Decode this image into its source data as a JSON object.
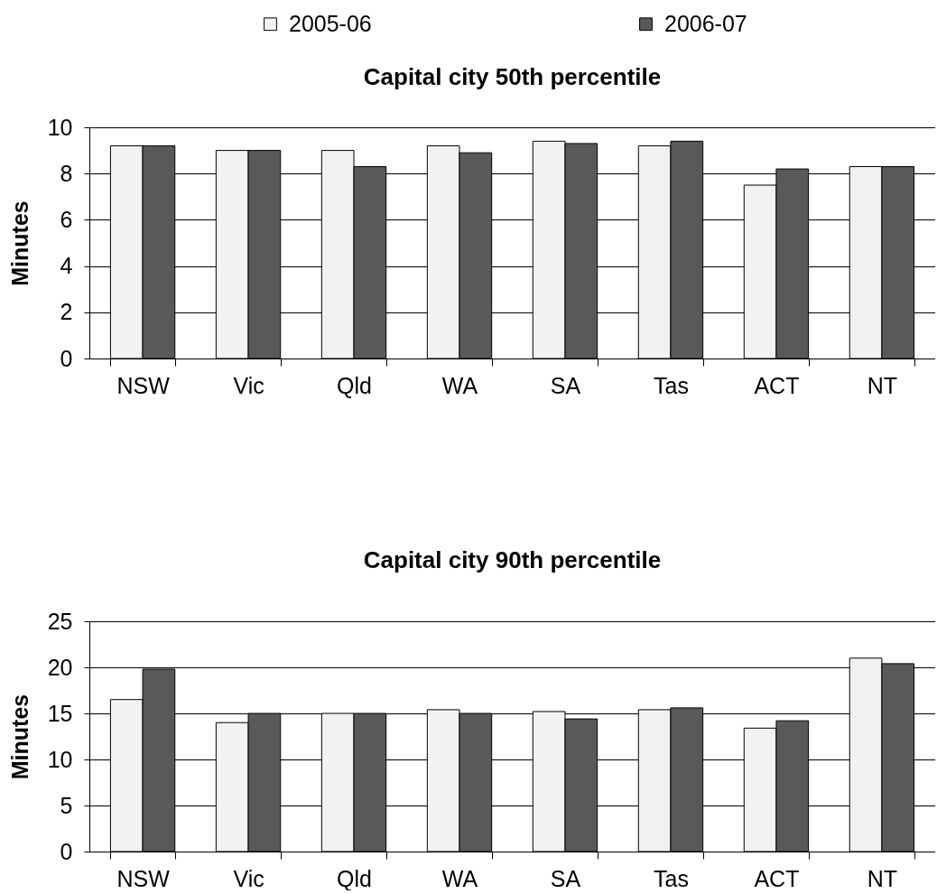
{
  "chart_data": [
    {
      "type": "bar",
      "title": "Capital city 50th percentile",
      "ylabel": "Minutes",
      "categories": [
        "NSW",
        "Vic",
        "Qld",
        "WA",
        "SA",
        "Tas",
        "ACT",
        "NT"
      ],
      "series": [
        {
          "name": "2005-06",
          "color": "#f2f2f2",
          "values": [
            9.2,
            9.0,
            9.0,
            9.2,
            9.4,
            9.2,
            7.5,
            8.3
          ]
        },
        {
          "name": "2006-07",
          "color": "#595959",
          "values": [
            9.2,
            9.0,
            8.3,
            8.9,
            9.3,
            9.4,
            8.2,
            8.3
          ]
        }
      ],
      "ylim": [
        0,
        10
      ],
      "yticks": [
        0,
        2,
        4,
        6,
        8,
        10
      ],
      "grid": "y",
      "legend": "top"
    },
    {
      "type": "bar",
      "title": "Capital city 90th percentile",
      "ylabel": "Minutes",
      "categories": [
        "NSW",
        "Vic",
        "Qld",
        "WA",
        "SA",
        "Tas",
        "ACT",
        "NT"
      ],
      "series": [
        {
          "name": "2005-06",
          "color": "#f2f2f2",
          "values": [
            16.5,
            14.0,
            15.0,
            15.4,
            15.2,
            15.4,
            13.4,
            21.0
          ]
        },
        {
          "name": "2006-07",
          "color": "#595959",
          "values": [
            19.8,
            15.0,
            15.0,
            15.0,
            14.4,
            15.6,
            14.2,
            20.4
          ]
        }
      ],
      "ylim": [
        0,
        25
      ],
      "yticks": [
        0,
        5,
        10,
        15,
        20,
        25
      ],
      "grid": "y",
      "legend": "top"
    }
  ]
}
